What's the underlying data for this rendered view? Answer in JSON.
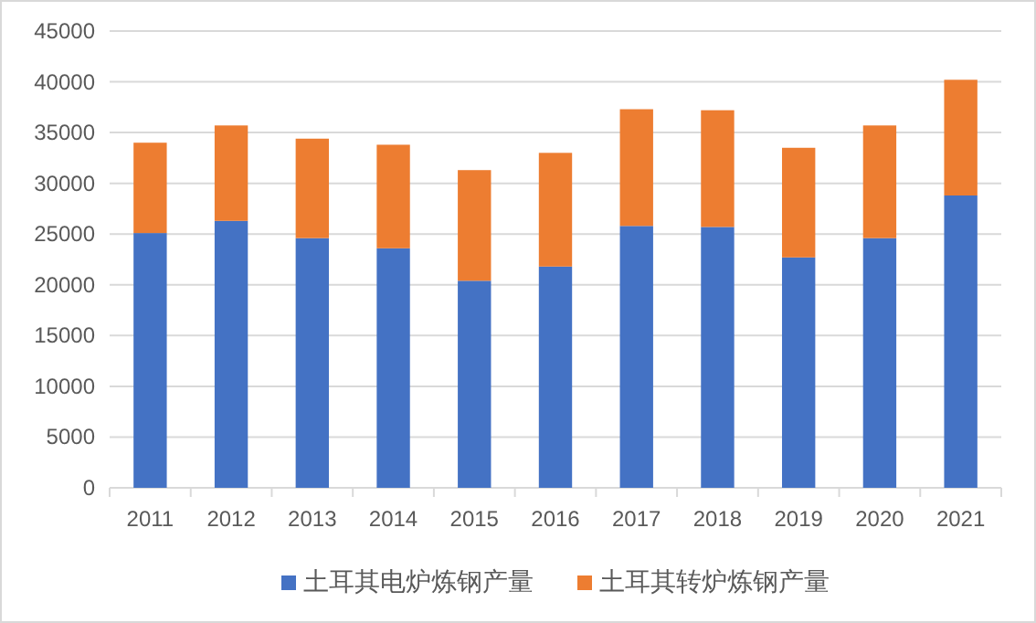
{
  "chart_data": {
    "type": "bar",
    "stacked": true,
    "categories": [
      "2011",
      "2012",
      "2013",
      "2014",
      "2015",
      "2016",
      "2017",
      "2018",
      "2019",
      "2020",
      "2021"
    ],
    "series": [
      {
        "name": "土耳其电炉炼钢产量",
        "color": "#4472c4",
        "values": [
          25100,
          26300,
          24600,
          23600,
          20400,
          21800,
          25800,
          25700,
          22700,
          24600,
          28800
        ]
      },
      {
        "name": "土耳其转炉炼钢产量",
        "color": "#ed7d31",
        "values": [
          8900,
          9400,
          9800,
          10200,
          10900,
          11200,
          11500,
          11500,
          10800,
          11100,
          11400
        ]
      }
    ],
    "ylim": [
      0,
      45000
    ],
    "yticks": [
      0,
      5000,
      10000,
      15000,
      20000,
      25000,
      30000,
      35000,
      40000,
      45000
    ],
    "grid": "y",
    "legend": "bottom"
  }
}
